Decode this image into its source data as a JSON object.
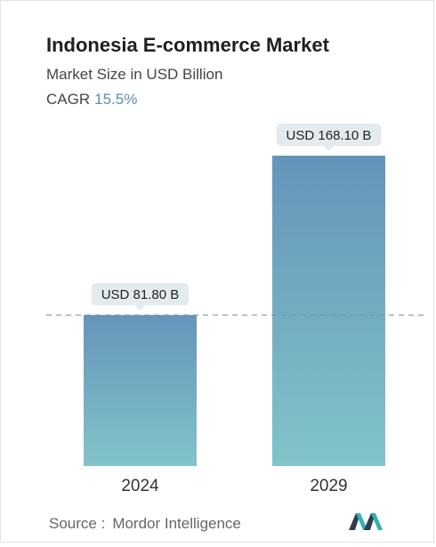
{
  "header": {
    "title": "Indonesia E-commerce Market",
    "subtitle": "Market Size in USD Billion",
    "cagr_label": "CAGR",
    "cagr_value": "15.5%"
  },
  "chart_data": {
    "type": "bar",
    "categories": [
      "2024",
      "2029"
    ],
    "values": [
      81.8,
      168.1
    ],
    "data_labels": [
      "USD 81.80 B",
      "USD 168.10 B"
    ],
    "title": "Indonesia E-commerce Market",
    "subtitle": "Market Size in USD Billion",
    "xlabel": "",
    "ylabel": "",
    "ylim": [
      0,
      168.1
    ],
    "grid": false,
    "reference_line": {
      "value": 81.8,
      "style": "dashed"
    },
    "colors": {
      "bar_top": "#6594ba",
      "bar_bottom": "#82c4c9",
      "label_bg": "#e4ebee",
      "reference_line": "#7f97aa"
    }
  },
  "footer": {
    "source_label": "Source :",
    "source_name": "Mordor Intelligence",
    "logo_icon": "mordor-intelligence-logo"
  }
}
